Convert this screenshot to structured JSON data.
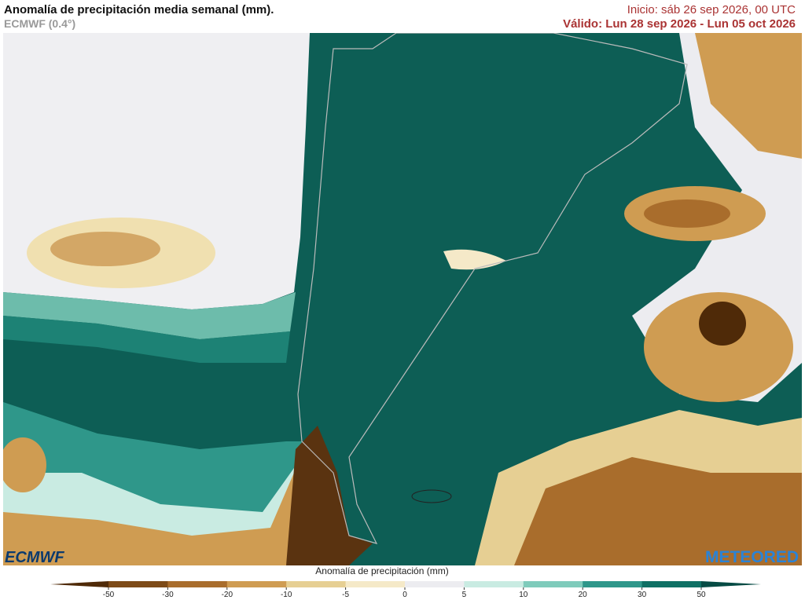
{
  "header": {
    "title": "Anomalía de precipitación media semanal (mm).",
    "subtitle": "ECMWF (0.4°)",
    "init": "Inicio:  sáb 26 sep 2026, 00 UTC",
    "valid": "Válido: Lun 28 sep 2026 - Lun 05 oct 2026"
  },
  "logos": {
    "left": "ECMWF",
    "right": "METEORED"
  },
  "colorbar": {
    "label": "Anomalía de precipitación (mm)",
    "ticks": [
      -50,
      -30,
      -20,
      -10,
      -5,
      0,
      5,
      10,
      20,
      30,
      50
    ],
    "colors": [
      "#4f2a08",
      "#7d4a17",
      "#a96d2c",
      "#cf9c52",
      "#e6cf93",
      "#f5e9c8",
      "#ececf0",
      "#c9ebe2",
      "#7fcbbb",
      "#2f978a",
      "#0f7064",
      "#064b44"
    ]
  }
}
